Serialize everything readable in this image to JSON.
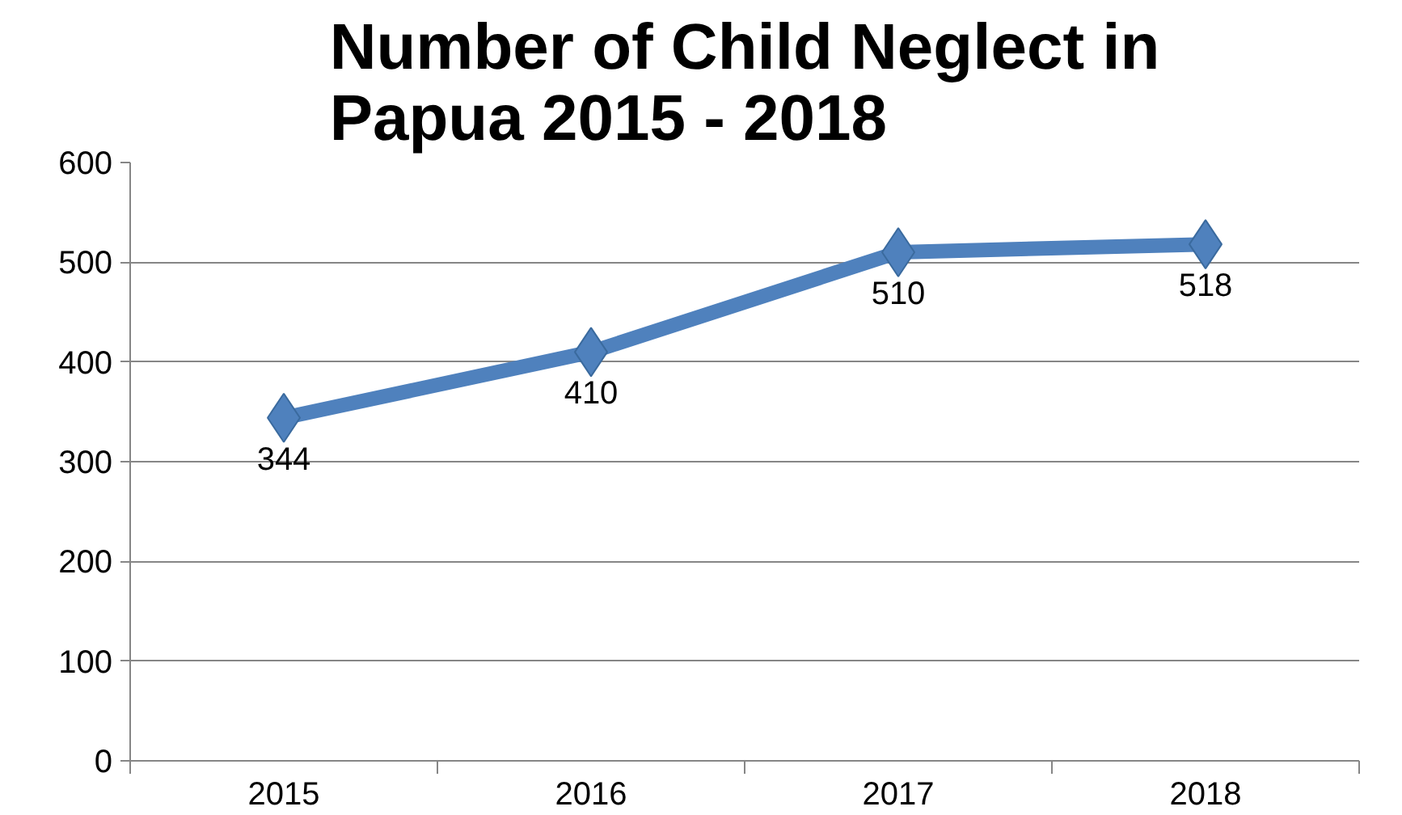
{
  "chart_data": {
    "type": "line",
    "title": "Number of Child Neglect in Papua 2015 - 2018",
    "categories": [
      "2015",
      "2016",
      "2017",
      "2018"
    ],
    "series": [
      {
        "color": "#4f81bd",
        "values": [
          344,
          410,
          510,
          518
        ]
      }
    ],
    "ylim": [
      0,
      600
    ],
    "yticks": [
      0,
      100,
      200,
      300,
      400,
      500,
      600
    ],
    "grid": "y",
    "marker": "diamond",
    "line_style": "solid",
    "data_labels": true
  }
}
